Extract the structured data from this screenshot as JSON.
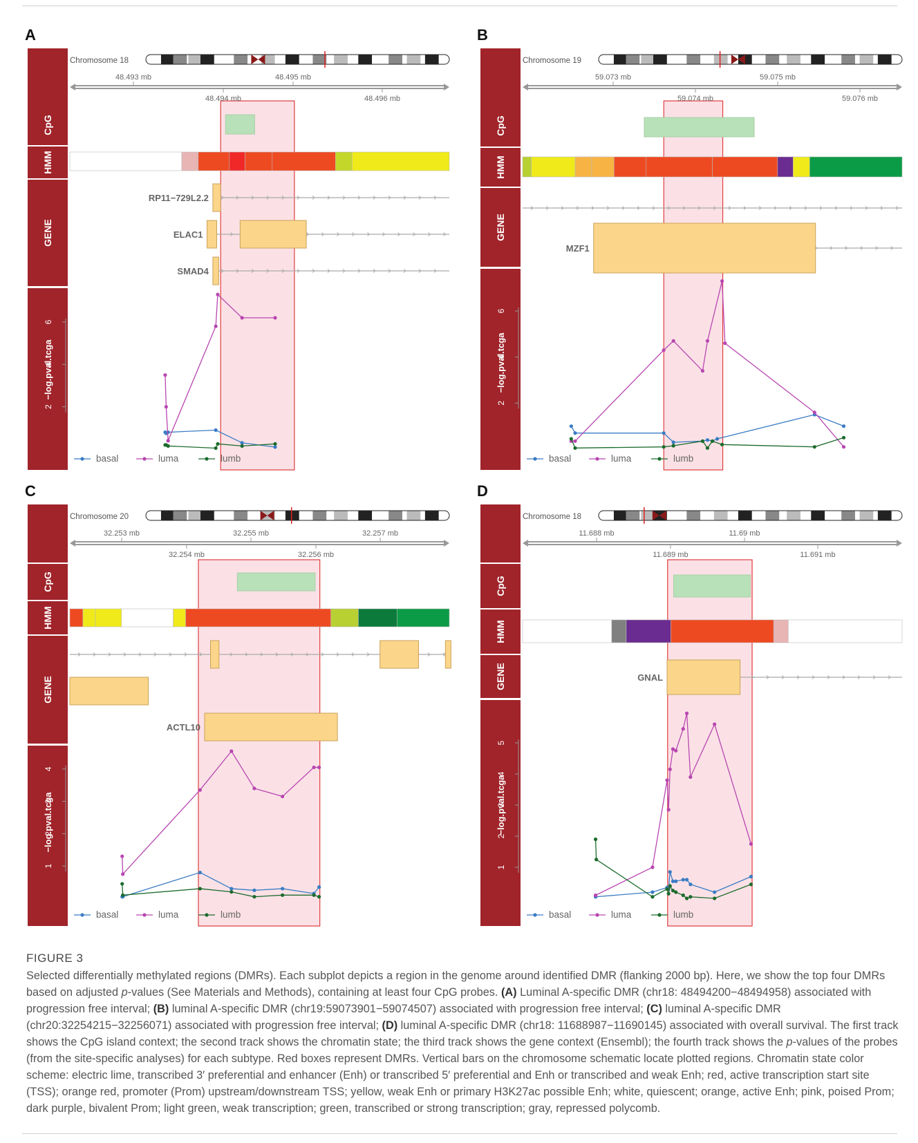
{
  "figure": {
    "label": "FIGURE 3",
    "caption": {
      "intro": "Selected differentially methylated regions (DMRs). Each subplot depicts a region in the genome around identified DMR (flanking 2000 bp). Here, we show the top four DMRs based on adjusted ",
      "pval_p": "p",
      "pval_rest": "-values (See Materials and Methods), containing at least four CpG probes. ",
      "a_label": "(A)",
      "a_text": " Luminal A-specific DMR (chr18: 48494200−48494958) associated with progression free interval; ",
      "b_label": "(B)",
      "b_text": " luminal A-specific DMR (chr19:59073901−59074507) associated with progression free interval; ",
      "c_label": "(C)",
      "c_text": " luminal A-specific DMR (chr20:32254215−32256071) associated with progression free interval; ",
      "d_label": "(D)",
      "d_text": " luminal A-specific DMR (chr18: 11688987−11690145) associated with overall survival. The first track shows the CpG island context; the second track shows the chromatin state; the third track shows the gene context (Ensembl); the fourth track shows the ",
      "p2": "p",
      "rest": "-values of the probes (from the site-specific analyses) for each subtype. Red boxes represent DMRs. Vertical bars on the chromosome schematic locate plotted regions. Chromatin state color scheme: electric lime, transcribed 3′ preferential and enhancer (Enh) or transcribed 5′ preferential and Enh or transcribed and weak Enh; red, active transcription start site (TSS); orange red, promoter (Prom) upstream/downstream TSS; yellow, weak Enh or primary H3K27ac possible Enh; white, quiescent; orange, active Enh; pink, poised Prom; dark purple, bivalent Prom; light green, weak transcription; green, transcribed or strong transcription; gray, repressed polycomb."
    }
  },
  "chart_data": [
    {
      "panel": "A",
      "type": "line",
      "chromosome": "Chromosome 18",
      "axis_ticks_top": [
        "48.493 mb",
        "48.495 mb"
      ],
      "axis_ticks_bottom": [
        "48.494 mb",
        "48.496 mb"
      ],
      "track_labels": [
        "CpG",
        "HMM",
        "GENE"
      ],
      "ylabel": "−log.pval.tcga",
      "yticks": [
        2,
        4,
        6
      ],
      "ylim": [
        0,
        7.5
      ],
      "xlim": [
        48492650,
        48496550
      ],
      "dmr": [
        48494200,
        48494958
      ],
      "cpg_islands": [
        [
          48494250,
          48494550
        ]
      ],
      "hmm_segments": [
        {
          "start": 48492650,
          "end": 48493800,
          "color": "#ffffff"
        },
        {
          "start": 48493800,
          "end": 48493970,
          "color": "#e8b4b4"
        },
        {
          "start": 48493970,
          "end": 48494290,
          "color": "#ee4a22"
        },
        {
          "start": 48494290,
          "end": 48494450,
          "color": "#f02828"
        },
        {
          "start": 48494450,
          "end": 48494730,
          "color": "#ee4a22"
        },
        {
          "start": 48494730,
          "end": 48495380,
          "color": "#ee4a22"
        },
        {
          "start": 48495380,
          "end": 48495550,
          "color": "#c3d62a"
        },
        {
          "start": 48495550,
          "end": 48496550,
          "color": "#f0ea1a"
        }
      ],
      "genes": [
        {
          "name": "RP11−729L2.2",
          "row": 0,
          "line": [
            48494120,
            48496550
          ],
          "exons": [
            [
              48494120,
              48494200
            ]
          ],
          "label_at": 48494120
        },
        {
          "name": "ELAC1",
          "row": 1,
          "line": [
            48494060,
            48496550
          ],
          "exons": [
            [
              48494060,
              48494160
            ],
            [
              48494400,
              48495080
            ]
          ],
          "label_at": 48494060
        },
        {
          "name": "SMAD4",
          "row": 2,
          "line": [
            48494120,
            48496550
          ],
          "exons": [
            [
              48494120,
              48494180
            ]
          ],
          "label_at": 48494120
        }
      ],
      "legend": [
        "basal",
        "luma",
        "lumb"
      ],
      "series": [
        {
          "name": "basal",
          "color": "#3a7cc4",
          "x": [
            48493630,
            48493640,
            48493660,
            48494150,
            48494420,
            48494760
          ],
          "y": [
            0.8,
            0.75,
            0.8,
            0.9,
            0.3,
            0.1
          ]
        },
        {
          "name": "luma",
          "color": "#b846b0",
          "x": [
            48493630,
            48493640,
            48493660,
            48494150,
            48494170,
            48494420,
            48494760
          ],
          "y": [
            3.5,
            2.0,
            0.4,
            5.8,
            7.3,
            6.2,
            6.2
          ]
        },
        {
          "name": "lumb",
          "color": "#1c6b2c",
          "x": [
            48493630,
            48493640,
            48493660,
            48494150,
            48494170,
            48494420,
            48494760
          ],
          "y": [
            0.2,
            0.2,
            0.15,
            0.05,
            0.25,
            0.15,
            0.25
          ]
        }
      ]
    },
    {
      "panel": "B",
      "type": "line",
      "chromosome": "Chromosome 19",
      "axis_ticks_top": [
        "59.073 mb",
        "59.075 mb"
      ],
      "axis_ticks_bottom": [
        "59.074 mb",
        "59.076 mb"
      ],
      "track_labels": [
        "CpG",
        "HMM",
        "GENE"
      ],
      "ylabel": "−log.pval.tcga",
      "yticks": [
        2,
        4,
        6
      ],
      "ylim": [
        0,
        7.5
      ],
      "xlim": [
        59072450,
        59076350
      ],
      "dmr": [
        59073901,
        59074507
      ],
      "cpg_islands": [
        [
          59073700,
          59074830
        ]
      ],
      "hmm_segments": [
        {
          "start": 59072450,
          "end": 59072540,
          "color": "#b8d032"
        },
        {
          "start": 59072540,
          "end": 59072990,
          "color": "#f0ea1a"
        },
        {
          "start": 59072990,
          "end": 59073160,
          "color": "#f7b445"
        },
        {
          "start": 59073160,
          "end": 59073390,
          "color": "#f7b445"
        },
        {
          "start": 59073390,
          "end": 59073720,
          "color": "#ee4a22"
        },
        {
          "start": 59073720,
          "end": 59074400,
          "color": "#ee4a22"
        },
        {
          "start": 59074400,
          "end": 59075070,
          "color": "#ee4a22"
        },
        {
          "start": 59075070,
          "end": 59075230,
          "color": "#6a2c90"
        },
        {
          "start": 59075230,
          "end": 59075400,
          "color": "#f0ea1a"
        },
        {
          "start": 59075400,
          "end": 59076350,
          "color": "#0b9b46"
        }
      ],
      "genes": [
        {
          "name": "",
          "row": 0,
          "line": [
            59072450,
            59076350
          ],
          "exons": [],
          "label_at": 59072450
        },
        {
          "name": "MZF1",
          "row": 1,
          "line": [
            59073180,
            59076350
          ],
          "exons": [
            [
              59073180,
              59075460
            ]
          ],
          "label_at": 59073180
        }
      ],
      "legend": [
        "basal",
        "luma",
        "lumb"
      ],
      "series": [
        {
          "name": "basal",
          "color": "#3a7cc4",
          "x": [
            59072950,
            59072990,
            59073900,
            59074000,
            59074300,
            59074350,
            59074400,
            59074450,
            59075450,
            59075750
          ],
          "y": [
            1.0,
            0.7,
            0.7,
            0.3,
            0.35,
            0.4,
            0.35,
            0.45,
            1.5,
            1.0
          ]
        },
        {
          "name": "luma",
          "color": "#b846b0",
          "x": [
            59072950,
            59072990,
            59073900,
            59074000,
            59074300,
            59074350,
            59074500,
            59074530,
            59075450,
            59075750
          ],
          "y": [
            0.35,
            0.35,
            4.3,
            4.7,
            3.4,
            4.7,
            7.3,
            4.6,
            1.6,
            0.1
          ]
        },
        {
          "name": "lumb",
          "color": "#1c6b2c",
          "x": [
            59072950,
            59072990,
            59073900,
            59074000,
            59074300,
            59074350,
            59074400,
            59074500,
            59075450,
            59075750
          ],
          "y": [
            0.45,
            0.05,
            0.1,
            0.15,
            0.35,
            0.05,
            0.35,
            0.2,
            0.1,
            0.5
          ]
        }
      ]
    },
    {
      "panel": "C",
      "type": "line",
      "chromosome": "Chromosome 20",
      "axis_ticks_top": [
        "32.253 mb",
        "32.255 mb",
        "32.257 mb"
      ],
      "axis_ticks_bottom": [
        "32.254 mb",
        "32.256 mb"
      ],
      "track_labels": [
        "CpG",
        "HMM",
        "GENE"
      ],
      "ylabel": "−log.pval.tcga",
      "yticks": [
        1,
        2,
        3,
        4
      ],
      "ylim": [
        0,
        4.7
      ],
      "xlim": [
        32252250,
        32258050
      ],
      "dmr": [
        32254215,
        32256071
      ],
      "cpg_islands": [
        [
          32254810,
          32256000
        ]
      ],
      "hmm_segments": [
        {
          "start": 32252250,
          "end": 32252450,
          "color": "#ee4a22"
        },
        {
          "start": 32252450,
          "end": 32252640,
          "color": "#f0ea1a"
        },
        {
          "start": 32252640,
          "end": 32253040,
          "color": "#f0ea1a"
        },
        {
          "start": 32253040,
          "end": 32253830,
          "color": "#ffffff"
        },
        {
          "start": 32253830,
          "end": 32254020,
          "color": "#f0ea1a"
        },
        {
          "start": 32254020,
          "end": 32256240,
          "color": "#ee4a22"
        },
        {
          "start": 32256240,
          "end": 32256660,
          "color": "#b8d032"
        },
        {
          "start": 32256660,
          "end": 32257250,
          "color": "#0b7a3a"
        },
        {
          "start": 32257250,
          "end": 32258050,
          "color": "#0b9b46"
        }
      ],
      "genes": [
        {
          "name": "",
          "row": 0,
          "line": [
            32252250,
            32258050
          ],
          "exons": [
            [
              32254400,
              32254530
            ],
            [
              32256990,
              32257580
            ],
            [
              32257990,
              32258050
            ]
          ],
          "label_at": 32252250
        },
        {
          "name": "",
          "row": 1,
          "line": [
            32252250,
            32253450
          ],
          "exons": [
            [
              32252250,
              32253450
            ]
          ],
          "label_at": 32252250
        },
        {
          "name": "ACTL10",
          "row": 2,
          "line": [
            32254310,
            32256340
          ],
          "exons": [
            [
              32254310,
              32256340
            ]
          ],
          "label_at": 32254310
        }
      ],
      "legend": [
        "basal",
        "luma",
        "lumb"
      ],
      "series": [
        {
          "name": "basal",
          "color": "#3a7cc4",
          "x": [
            32253050,
            32253060,
            32254240,
            32254720,
            32255070,
            32255500,
            32255980,
            32256060
          ],
          "y": [
            0.05,
            0.05,
            0.8,
            0.3,
            0.25,
            0.3,
            0.15,
            0.35
          ]
        },
        {
          "name": "luma",
          "color": "#b846b0",
          "x": [
            32253050,
            32253060,
            32254240,
            32254720,
            32255070,
            32255500,
            32255980,
            32256060
          ],
          "y": [
            1.3,
            0.75,
            3.35,
            4.55,
            3.4,
            3.15,
            4.05,
            4.05
          ]
        },
        {
          "name": "lumb",
          "color": "#1c6b2c",
          "x": [
            32253050,
            32253060,
            32254240,
            32254720,
            32255070,
            32255500,
            32255980,
            32256060
          ],
          "y": [
            0.45,
            0.1,
            0.3,
            0.2,
            0.05,
            0.1,
            0.1,
            0.05
          ]
        }
      ]
    },
    {
      "panel": "D",
      "type": "line",
      "chromosome": "Chromosome 18",
      "axis_ticks_top": [
        "11.688 mb",
        "11.69 mb"
      ],
      "axis_ticks_bottom": [
        "11.689 mb",
        "11.691 mb"
      ],
      "track_labels": [
        "CpG",
        "HMM",
        "GENE"
      ],
      "ylabel": "−log.pval.tcga",
      "yticks": [
        1,
        2,
        3,
        4,
        5
      ],
      "ylim": [
        0,
        6.0
      ],
      "xlim": [
        11687000,
        11692200
      ],
      "dmr": [
        11688987,
        11690145
      ],
      "cpg_islands": [
        [
          11689070,
          11690120
        ]
      ],
      "hmm_segments": [
        {
          "start": 11687000,
          "end": 11688220,
          "color": "#ffffff"
        },
        {
          "start": 11688220,
          "end": 11688420,
          "color": "#808080"
        },
        {
          "start": 11688420,
          "end": 11689030,
          "color": "#6a2c90"
        },
        {
          "start": 11689030,
          "end": 11690440,
          "color": "#ee4a22"
        },
        {
          "start": 11690440,
          "end": 11690640,
          "color": "#e8b4b4"
        },
        {
          "start": 11690640,
          "end": 11692200,
          "color": "#ffffff"
        }
      ],
      "genes": [
        {
          "name": "GNAL",
          "row": 0,
          "line": [
            11688980,
            11692200
          ],
          "exons": [
            [
              11688980,
              11689980
            ]
          ],
          "label_at": 11688980
        }
      ],
      "legend": [
        "basal",
        "luma",
        "lumb"
      ],
      "series": [
        {
          "name": "basal",
          "color": "#3a7cc4",
          "x": [
            11688000,
            11688780,
            11688980,
            11689000,
            11689020,
            11689060,
            11689100,
            11689200,
            11689250,
            11689300,
            11689630,
            11690130
          ],
          "y": [
            0.05,
            0.2,
            0.35,
            0.3,
            0.85,
            0.55,
            0.55,
            0.6,
            0.6,
            0.45,
            0.2,
            0.7
          ]
        },
        {
          "name": "luma",
          "color": "#b846b0",
          "x": [
            11688000,
            11688780,
            11688980,
            11689000,
            11689020,
            11689060,
            11689100,
            11689200,
            11689250,
            11689300,
            11689630,
            11690130
          ],
          "y": [
            0.1,
            1.0,
            3.8,
            2.85,
            4.15,
            4.8,
            4.75,
            5.45,
            5.95,
            3.9,
            5.6,
            1.75
          ]
        },
        {
          "name": "lumb",
          "color": "#1c6b2c",
          "x": [
            11688000,
            11688010,
            11688780,
            11688980,
            11689000,
            11689020,
            11689060,
            11689100,
            11689200,
            11689250,
            11689300,
            11689630,
            11690130
          ],
          "y": [
            1.9,
            1.25,
            0.05,
            0.3,
            0.15,
            0.4,
            0.25,
            0.2,
            0.1,
            0.0,
            0.05,
            0.0,
            0.45
          ]
        }
      ]
    }
  ]
}
